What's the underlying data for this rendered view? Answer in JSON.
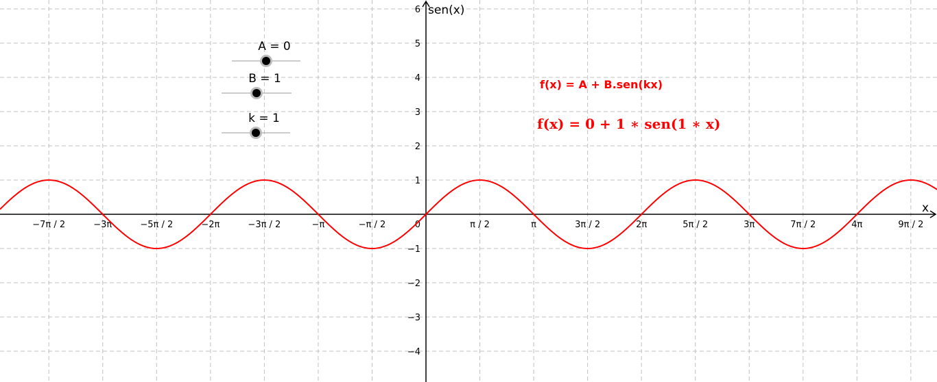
{
  "graph": {
    "x_label": "x",
    "y_label": "sen(x)",
    "color": "#ff0000",
    "grid": true,
    "xlim": [
      -12.42,
      14.9
    ],
    "ylim": [
      -4.9,
      6.26
    ],
    "xticks": [
      {
        "value": -10.9956,
        "label": "−7π / 2"
      },
      {
        "value": -9.4248,
        "label": "−3π"
      },
      {
        "value": -7.854,
        "label": "−5π / 2"
      },
      {
        "value": -6.2832,
        "label": "−2π"
      },
      {
        "value": -4.7124,
        "label": "−3π / 2"
      },
      {
        "value": -3.1416,
        "label": "−π"
      },
      {
        "value": -1.5708,
        "label": "−π / 2"
      },
      0,
      {
        "value": 1.5708,
        "label": "π / 2"
      },
      {
        "value": 3.1416,
        "label": "π"
      },
      {
        "value": 4.7124,
        "label": "3π / 2"
      },
      {
        "value": 6.2832,
        "label": "2π"
      },
      {
        "value": 7.854,
        "label": "5π / 2"
      },
      {
        "value": 9.4248,
        "label": "3π"
      },
      {
        "value": 10.9956,
        "label": "7π / 2"
      },
      {
        "value": 12.5664,
        "label": "4π"
      },
      {
        "value": 14.1372,
        "label": "9π / 2"
      }
    ],
    "yticks": [
      {
        "value": -4,
        "label": "−4"
      },
      {
        "value": -3,
        "label": "−3"
      },
      {
        "value": -2,
        "label": "−2"
      },
      {
        "value": -1,
        "label": "−1"
      },
      1,
      2,
      3,
      4,
      5,
      6
    ]
  },
  "sliders": [
    {
      "label": "A = 0",
      "value": 0
    },
    {
      "label": "B = 1",
      "value": 1
    },
    {
      "label": "k = 1",
      "value": 1
    }
  ],
  "formulas": [
    "f(x) = A + B.sen(kx)",
    "f(x) = 0 + 1 ∗ sen(1 ∗ x)"
  ]
}
